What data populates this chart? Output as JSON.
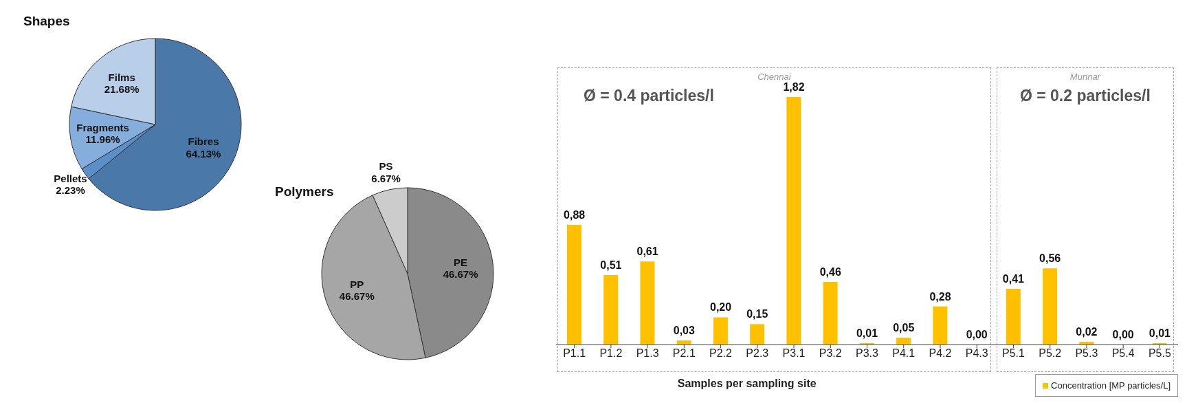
{
  "chart_data": [
    {
      "type": "pie",
      "title": "Shapes",
      "categories": [
        "Fibres",
        "Pellets",
        "Fragments",
        "Films"
      ],
      "values": [
        64.13,
        2.23,
        11.96,
        21.68
      ],
      "colors": [
        "#4a79a9",
        "#5b8fc9",
        "#86aedc",
        "#b9cfe9"
      ],
      "value_labels": [
        "64.13%",
        "2.23%",
        "11.96%",
        "21.68%"
      ]
    },
    {
      "type": "pie",
      "title": "Polymers",
      "categories": [
        "PE",
        "PP",
        "PS"
      ],
      "values": [
        46.67,
        46.67,
        6.67
      ],
      "colors": [
        "#8a8a8a",
        "#a6a6a6",
        "#cccccc"
      ],
      "value_labels": [
        "46.67%",
        "46.67%",
        "6.67%"
      ]
    },
    {
      "type": "bar",
      "xlabel": "Samples per sampling site",
      "categories": [
        "P1.1",
        "P1.2",
        "P1.3",
        "P2.1",
        "P2.2",
        "P2.3",
        "P3.1",
        "P3.2",
        "P3.3",
        "P4.1",
        "P4.2",
        "P4.3",
        "P5.1",
        "P5.2",
        "P5.3",
        "P5.4",
        "P5.5"
      ],
      "series": [
        {
          "name": "Concentration [MP particles/L]",
          "color": "#ffc000",
          "values": [
            0.88,
            0.51,
            0.61,
            0.03,
            0.2,
            0.15,
            1.82,
            0.46,
            0.01,
            0.05,
            0.28,
            0.0,
            0.41,
            0.56,
            0.02,
            0.0,
            0.01
          ],
          "value_labels": [
            "0,88",
            "0,51",
            "0,61",
            "0,03",
            "0,20",
            "0,15",
            "1,82",
            "0,46",
            "0,01",
            "0,05",
            "0,28",
            "0,00",
            "0,41",
            "0,56",
            "0,02",
            "0,00",
            "0,01"
          ]
        }
      ],
      "annotations": [
        "Chennai",
        "Ø = 0.4 particles/l",
        "Munnar",
        "Ø = 0.2 particles/l"
      ],
      "legend": "bottom right",
      "grid": false
    }
  ]
}
